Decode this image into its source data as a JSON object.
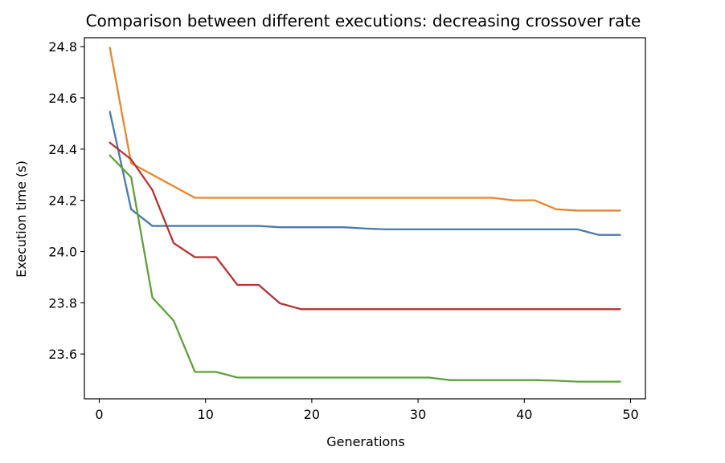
{
  "chart_data": {
    "type": "line",
    "title": "Comparison between different executions: decreasing crossover rate",
    "xlabel": "Generations",
    "ylabel": "Execution time (s)",
    "xlim": [
      -1.4,
      51.4
    ],
    "ylim": [
      23.425,
      24.835
    ],
    "xticks": [
      0,
      10,
      20,
      30,
      40,
      50
    ],
    "yticks": [
      23.6,
      23.8,
      24.0,
      24.2,
      24.4,
      24.6,
      24.8
    ],
    "xtick_labels": [
      "0",
      "10",
      "20",
      "30",
      "40",
      "50"
    ],
    "ytick_labels": [
      "23.6",
      "23.8",
      "24.0",
      "24.2",
      "24.4",
      "24.6",
      "24.8"
    ],
    "grid": false,
    "legend": "none",
    "series": [
      {
        "color": "#4a79b0",
        "x": [
          1,
          3,
          5,
          7,
          9,
          11,
          13,
          15,
          17,
          19,
          21,
          23,
          25,
          27,
          29,
          31,
          33,
          35,
          37,
          39,
          41,
          43,
          45,
          47,
          49
        ],
        "y": [
          24.545,
          24.165,
          24.1,
          24.1,
          24.1,
          24.1,
          24.1,
          24.1,
          24.095,
          24.095,
          24.095,
          24.095,
          24.09,
          24.087,
          24.087,
          24.087,
          24.087,
          24.087,
          24.087,
          24.087,
          24.087,
          24.087,
          24.087,
          24.065,
          24.065
        ]
      },
      {
        "color": "#e8862c",
        "x": [
          1,
          3,
          5,
          7,
          9,
          11,
          13,
          15,
          17,
          19,
          21,
          23,
          25,
          27,
          29,
          31,
          33,
          35,
          37,
          39,
          41,
          43,
          45,
          47,
          49
        ],
        "y": [
          24.795,
          24.345,
          24.3,
          24.255,
          24.21,
          24.21,
          24.21,
          24.21,
          24.21,
          24.21,
          24.21,
          24.21,
          24.21,
          24.21,
          24.21,
          24.21,
          24.21,
          24.21,
          24.21,
          24.2,
          24.2,
          24.165,
          24.16,
          24.16,
          24.16
        ]
      },
      {
        "color": "#61a03a",
        "x": [
          1,
          3,
          5,
          7,
          9,
          11,
          13,
          15,
          17,
          19,
          21,
          23,
          25,
          27,
          29,
          31,
          33,
          35,
          37,
          39,
          41,
          43,
          45,
          47,
          49
        ],
        "y": [
          24.375,
          24.29,
          23.82,
          23.73,
          23.53,
          23.53,
          23.508,
          23.508,
          23.508,
          23.508,
          23.508,
          23.508,
          23.508,
          23.508,
          23.508,
          23.508,
          23.498,
          23.498,
          23.498,
          23.498,
          23.498,
          23.496,
          23.492,
          23.492,
          23.492
        ]
      },
      {
        "color": "#b83232",
        "x": [
          1,
          3,
          5,
          7,
          9,
          11,
          13,
          15,
          17,
          19,
          21,
          23,
          25,
          27,
          29,
          31,
          33,
          35,
          37,
          39,
          41,
          43,
          45,
          47,
          49
        ],
        "y": [
          24.425,
          24.36,
          24.24,
          24.033,
          23.978,
          23.978,
          23.87,
          23.87,
          23.798,
          23.775,
          23.775,
          23.775,
          23.775,
          23.775,
          23.775,
          23.775,
          23.775,
          23.775,
          23.775,
          23.775,
          23.775,
          23.775,
          23.775,
          23.775,
          23.775
        ]
      }
    ]
  }
}
